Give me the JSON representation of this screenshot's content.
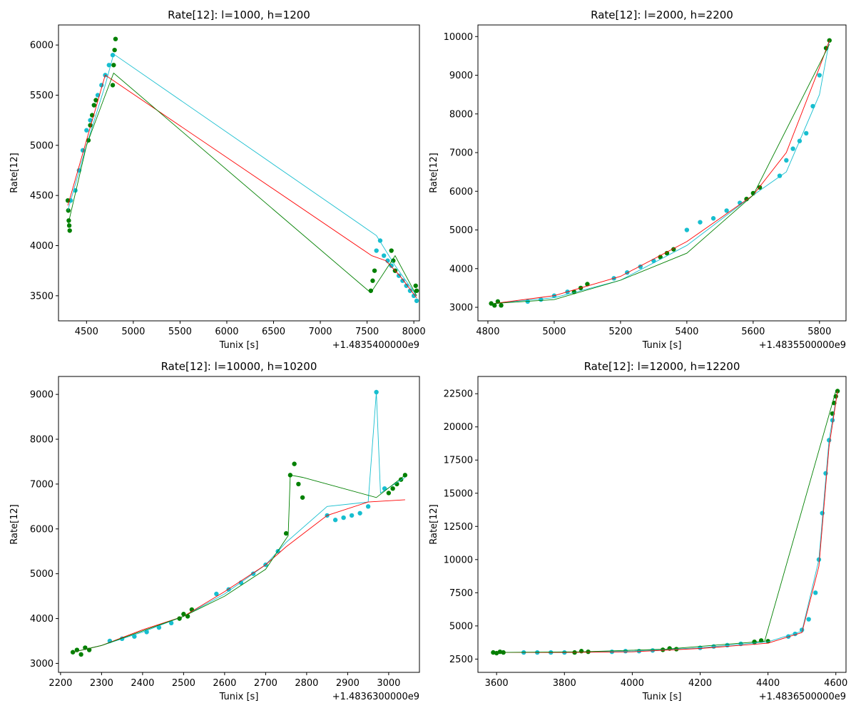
{
  "chart_data": [
    {
      "type": "scatter",
      "title": "Rate[12]: l=1000, h=1200",
      "xlabel": "Tunix [s]",
      "ylabel": "Rate[12]",
      "x_offset_label": "+1.4835400000e9",
      "xlim": [
        4200,
        8060
      ],
      "ylim": [
        3250,
        6200
      ],
      "xticks": [
        4500,
        5000,
        5500,
        6000,
        6500,
        7000,
        7500,
        8000
      ],
      "yticks": [
        3500,
        4000,
        4500,
        5000,
        5500,
        6000
      ],
      "colors": {
        "cyan": "#17becf",
        "green": "#008000",
        "red": "#ff0000"
      },
      "series": [
        {
          "role": "cyan-points",
          "color": "#17becf",
          "marker": "point",
          "x": [
            4330,
            4380,
            4420,
            4460,
            4500,
            4540,
            4580,
            4620,
            4660,
            4700,
            4740,
            4780,
            7600,
            7640,
            7680,
            7720,
            7760,
            7800,
            7840,
            7880,
            7920,
            7960,
            8000,
            8030
          ],
          "y": [
            4450,
            4550,
            4750,
            4950,
            5150,
            5250,
            5400,
            5500,
            5600,
            5700,
            5800,
            5900,
            3950,
            4050,
            3900,
            3850,
            3800,
            3750,
            3700,
            3650,
            3600,
            3550,
            3500,
            3450
          ]
        },
        {
          "role": "green-points",
          "color": "#008000",
          "marker": "point",
          "x": [
            4300,
            4305,
            4310,
            4315,
            4320,
            4520,
            4540,
            4560,
            4580,
            4600,
            4780,
            4790,
            4800,
            4810,
            7540,
            7560,
            7580,
            7760,
            7780,
            7800,
            8020,
            8030
          ],
          "y": [
            4450,
            4350,
            4250,
            4200,
            4150,
            5050,
            5200,
            5300,
            5400,
            5450,
            5600,
            5800,
            5950,
            6060,
            3550,
            3650,
            3750,
            3950,
            3850,
            3750,
            3600,
            3550
          ]
        },
        {
          "role": "cyan-line",
          "color": "#17becf",
          "marker": "line",
          "x": [
            4300,
            4500,
            4700,
            4790,
            7600,
            7800,
            8030
          ],
          "y": [
            4350,
            5000,
            5600,
            5910,
            4100,
            3800,
            3500
          ]
        },
        {
          "role": "red-line",
          "color": "#ff0000",
          "marker": "line",
          "x": [
            4300,
            4500,
            4700,
            4780,
            7550,
            7700,
            7850,
            8030
          ],
          "y": [
            4400,
            5050,
            5700,
            5650,
            3900,
            3850,
            3700,
            3480
          ]
        },
        {
          "role": "green-line",
          "color": "#008000",
          "marker": "line",
          "x": [
            4300,
            4500,
            4700,
            4790,
            7540,
            7800,
            8030
          ],
          "y": [
            4200,
            5000,
            5500,
            5720,
            3530,
            3900,
            3500
          ]
        }
      ]
    },
    {
      "type": "scatter",
      "title": "Rate[12]: l=2000, h=2200",
      "xlabel": "Tunix [s]",
      "ylabel": "Rate[12]",
      "x_offset_label": "+1.4835500000e9",
      "xlim": [
        4770,
        5880
      ],
      "ylim": [
        2650,
        10300
      ],
      "xticks": [
        4800,
        5000,
        5200,
        5400,
        5600,
        5800
      ],
      "yticks": [
        3000,
        4000,
        5000,
        6000,
        7000,
        8000,
        9000,
        10000
      ],
      "colors": {
        "cyan": "#17becf",
        "green": "#008000",
        "red": "#ff0000"
      },
      "series": [
        {
          "role": "cyan-points",
          "color": "#17becf",
          "marker": "point",
          "x": [
            4920,
            4960,
            5000,
            5040,
            5180,
            5220,
            5260,
            5300,
            5400,
            5440,
            5480,
            5520,
            5560,
            5680,
            5700,
            5720,
            5740,
            5760,
            5780,
            5800,
            5820
          ],
          "y": [
            3150,
            3200,
            3300,
            3400,
            3750,
            3900,
            4050,
            4200,
            5000,
            5200,
            5300,
            5500,
            5700,
            6400,
            6800,
            7100,
            7300,
            7500,
            8200,
            9000,
            9700
          ]
        },
        {
          "role": "green-points",
          "color": "#008000",
          "marker": "point",
          "x": [
            4810,
            4820,
            4830,
            4840,
            5060,
            5080,
            5100,
            5320,
            5340,
            5360,
            5580,
            5600,
            5620,
            5820,
            5830
          ],
          "y": [
            3100,
            3050,
            3150,
            3050,
            3400,
            3500,
            3600,
            4300,
            4400,
            4500,
            5800,
            5950,
            6100,
            9700,
            9900
          ]
        },
        {
          "role": "cyan-line",
          "color": "#17becf",
          "marker": "line",
          "x": [
            4820,
            5000,
            5200,
            5400,
            5600,
            5700,
            5800,
            5830
          ],
          "y": [
            3100,
            3250,
            3700,
            4600,
            5900,
            6500,
            8500,
            9900
          ]
        },
        {
          "role": "red-line",
          "color": "#ff0000",
          "marker": "line",
          "x": [
            4820,
            5000,
            5200,
            5400,
            5600,
            5700,
            5800,
            5830
          ],
          "y": [
            3100,
            3300,
            3800,
            4700,
            5900,
            7000,
            9200,
            9900
          ]
        },
        {
          "role": "green-line",
          "color": "#008000",
          "marker": "line",
          "x": [
            4820,
            5000,
            5200,
            5400,
            5600,
            5830
          ],
          "y": [
            3100,
            3200,
            3700,
            4400,
            5900,
            9800
          ]
        }
      ]
    },
    {
      "type": "scatter",
      "title": "Rate[12]: l=10000, h=10200",
      "xlabel": "Tunix [s]",
      "ylabel": "Rate[12]",
      "x_offset_label": "+1.4836300000e9",
      "xlim": [
        2195,
        3075
      ],
      "ylim": [
        2800,
        9400
      ],
      "xticks": [
        2200,
        2300,
        2400,
        2500,
        2600,
        2700,
        2800,
        2900,
        3000
      ],
      "yticks": [
        3000,
        4000,
        5000,
        6000,
        7000,
        8000,
        9000
      ],
      "colors": {
        "cyan": "#17becf",
        "green": "#008000",
        "red": "#ff0000"
      },
      "series": [
        {
          "role": "cyan-points",
          "color": "#17becf",
          "marker": "point",
          "x": [
            2320,
            2350,
            2380,
            2410,
            2440,
            2470,
            2580,
            2610,
            2640,
            2670,
            2700,
            2730,
            2850,
            2870,
            2890,
            2910,
            2930,
            2950,
            2970,
            2990
          ],
          "y": [
            3500,
            3550,
            3600,
            3700,
            3800,
            3900,
            4550,
            4650,
            4800,
            5000,
            5200,
            5500,
            6300,
            6200,
            6250,
            6300,
            6350,
            6500,
            9050,
            6900
          ]
        },
        {
          "role": "green-points",
          "color": "#008000",
          "marker": "point",
          "x": [
            2230,
            2240,
            2250,
            2260,
            2270,
            2490,
            2500,
            2510,
            2520,
            2750,
            2760,
            2770,
            2780,
            2790,
            3000,
            3010,
            3020,
            3030,
            3040
          ],
          "y": [
            3250,
            3300,
            3200,
            3350,
            3300,
            4000,
            4100,
            4050,
            4200,
            5900,
            7200,
            7450,
            7000,
            6700,
            6800,
            6900,
            7000,
            7100,
            7200
          ]
        },
        {
          "role": "cyan-line",
          "color": "#17becf",
          "marker": "line",
          "x": [
            2230,
            2300,
            2400,
            2500,
            2600,
            2700,
            2750,
            2850,
            2950,
            2970,
            2980,
            3040
          ],
          "y": [
            3250,
            3400,
            3700,
            4050,
            4550,
            5200,
            5700,
            6500,
            6600,
            9050,
            6800,
            7150
          ]
        },
        {
          "role": "red-line",
          "color": "#ff0000",
          "marker": "line",
          "x": [
            2230,
            2300,
            2400,
            2500,
            2600,
            2700,
            2750,
            2850,
            2950,
            3040
          ],
          "y": [
            3250,
            3400,
            3750,
            4050,
            4600,
            5200,
            5600,
            6300,
            6600,
            6650
          ]
        },
        {
          "role": "green-line",
          "color": "#008000",
          "marker": "line",
          "x": [
            2230,
            2300,
            2500,
            2600,
            2700,
            2755,
            2760,
            2790,
            2970,
            3040
          ],
          "y": [
            3250,
            3400,
            4050,
            4500,
            5100,
            5850,
            7200,
            7150,
            6700,
            7200
          ]
        }
      ]
    },
    {
      "type": "scatter",
      "title": "Rate[12]: l=12000, h=12200",
      "xlabel": "Tunix [s]",
      "ylabel": "Rate[12]",
      "x_offset_label": "+1.4836500000e9",
      "xlim": [
        3545,
        4630
      ],
      "ylim": [
        1500,
        23800
      ],
      "xticks": [
        3600,
        3800,
        4000,
        4200,
        4400,
        4600
      ],
      "yticks": [
        2500,
        5000,
        7500,
        10000,
        12500,
        15000,
        17500,
        20000,
        22500
      ],
      "colors": {
        "cyan": "#17becf",
        "green": "#008000",
        "red": "#ff0000"
      },
      "series": [
        {
          "role": "cyan-points",
          "color": "#17becf",
          "marker": "point",
          "x": [
            3680,
            3720,
            3760,
            3800,
            3940,
            3980,
            4020,
            4060,
            4200,
            4240,
            4280,
            4320,
            4360,
            4460,
            4480,
            4500,
            4520,
            4540,
            4550,
            4560,
            4570,
            4580,
            4590
          ],
          "y": [
            3000,
            3000,
            3000,
            3000,
            3050,
            3100,
            3100,
            3150,
            3350,
            3450,
            3550,
            3650,
            3750,
            4200,
            4400,
            4700,
            5500,
            7500,
            10000,
            13500,
            16500,
            19000,
            20500
          ]
        },
        {
          "role": "green-points",
          "color": "#008000",
          "marker": "point",
          "x": [
            3590,
            3600,
            3610,
            3620,
            3830,
            3850,
            3870,
            4090,
            4110,
            4130,
            4360,
            4380,
            4400,
            4590,
            4595,
            4600,
            4605
          ],
          "y": [
            3000,
            2950,
            3050,
            3000,
            3000,
            3100,
            3050,
            3200,
            3300,
            3250,
            3800,
            3900,
            3850,
            21000,
            21800,
            22300,
            22700
          ]
        },
        {
          "role": "cyan-line",
          "color": "#17becf",
          "marker": "line",
          "x": [
            3600,
            3800,
            4000,
            4200,
            4400,
            4500,
            4550,
            4580,
            4605
          ],
          "y": [
            3000,
            3000,
            3100,
            3350,
            3800,
            4600,
            10000,
            19000,
            22700
          ]
        },
        {
          "role": "red-line",
          "color": "#ff0000",
          "marker": "line",
          "x": [
            3600,
            3800,
            4000,
            4200,
            4400,
            4500,
            4550,
            4580,
            4605
          ],
          "y": [
            3000,
            3000,
            3050,
            3300,
            3700,
            4500,
            9500,
            18500,
            22700
          ]
        },
        {
          "role": "green-line",
          "color": "#008000",
          "marker": "line",
          "x": [
            3600,
            3850,
            4100,
            4390,
            4600
          ],
          "y": [
            3000,
            3050,
            3250,
            3850,
            22700
          ]
        }
      ]
    }
  ]
}
